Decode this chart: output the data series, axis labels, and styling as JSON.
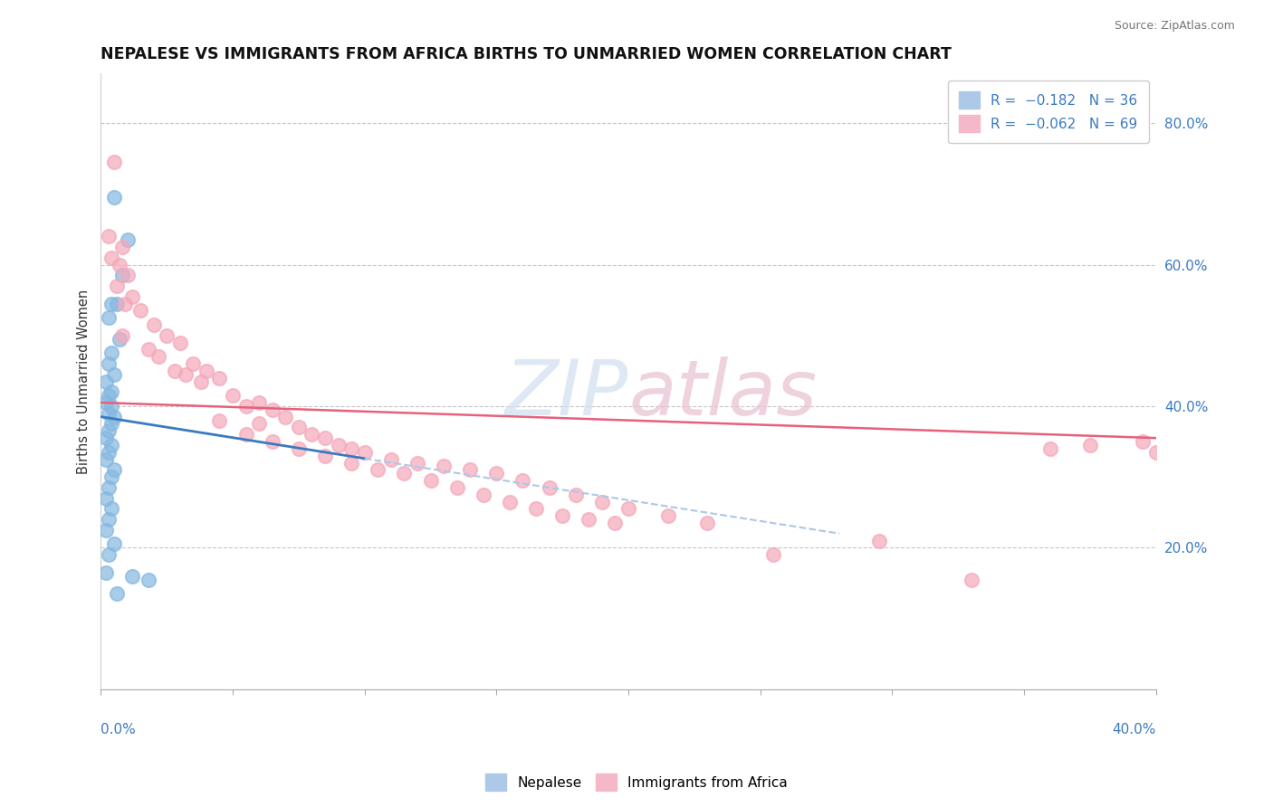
{
  "title": "NEPALESE VS IMMIGRANTS FROM AFRICA BIRTHS TO UNMARRIED WOMEN CORRELATION CHART",
  "source": "Source: ZipAtlas.com",
  "ylabel": "Births to Unmarried Women",
  "right_yticks": [
    "80.0%",
    "60.0%",
    "40.0%",
    "20.0%"
  ],
  "right_ytick_vals": [
    0.8,
    0.6,
    0.4,
    0.2
  ],
  "nepalese_color": "#85b8e0",
  "africa_color": "#f4a8ba",
  "nepalese_trend_color": "#3a7abf",
  "africa_trend_color": "#e8607a",
  "background_color": "#ffffff",
  "grid_color": "#c8c8c8",
  "xlim": [
    0.0,
    0.4
  ],
  "ylim": [
    0.0,
    0.87
  ],
  "nepalese_x": [
    0.005,
    0.01,
    0.008,
    0.004,
    0.006,
    0.003,
    0.007,
    0.004,
    0.003,
    0.005,
    0.002,
    0.004,
    0.003,
    0.002,
    0.004,
    0.003,
    0.005,
    0.004,
    0.003,
    0.002,
    0.004,
    0.003,
    0.002,
    0.005,
    0.004,
    0.003,
    0.002,
    0.004,
    0.003,
    0.002,
    0.005,
    0.003,
    0.002,
    0.006,
    0.012,
    0.018
  ],
  "nepalese_y": [
    0.695,
    0.635,
    0.585,
    0.545,
    0.545,
    0.525,
    0.495,
    0.475,
    0.46,
    0.445,
    0.435,
    0.42,
    0.415,
    0.405,
    0.4,
    0.39,
    0.385,
    0.375,
    0.365,
    0.355,
    0.345,
    0.335,
    0.325,
    0.31,
    0.3,
    0.285,
    0.27,
    0.255,
    0.24,
    0.225,
    0.205,
    0.19,
    0.165,
    0.135,
    0.16,
    0.155
  ],
  "africa_x": [
    0.005,
    0.003,
    0.008,
    0.004,
    0.007,
    0.01,
    0.006,
    0.012,
    0.009,
    0.015,
    0.02,
    0.008,
    0.025,
    0.03,
    0.018,
    0.022,
    0.035,
    0.028,
    0.04,
    0.032,
    0.045,
    0.038,
    0.05,
    0.06,
    0.055,
    0.065,
    0.07,
    0.06,
    0.075,
    0.08,
    0.085,
    0.09,
    0.095,
    0.1,
    0.11,
    0.12,
    0.13,
    0.14,
    0.15,
    0.16,
    0.17,
    0.18,
    0.19,
    0.2,
    0.215,
    0.23,
    0.045,
    0.055,
    0.065,
    0.075,
    0.085,
    0.095,
    0.105,
    0.115,
    0.125,
    0.135,
    0.145,
    0.155,
    0.165,
    0.175,
    0.185,
    0.195,
    0.255,
    0.295,
    0.33,
    0.36,
    0.375,
    0.395,
    0.4
  ],
  "africa_y": [
    0.745,
    0.64,
    0.625,
    0.61,
    0.6,
    0.585,
    0.57,
    0.555,
    0.545,
    0.535,
    0.515,
    0.5,
    0.5,
    0.49,
    0.48,
    0.47,
    0.46,
    0.45,
    0.45,
    0.445,
    0.44,
    0.435,
    0.415,
    0.405,
    0.4,
    0.395,
    0.385,
    0.375,
    0.37,
    0.36,
    0.355,
    0.345,
    0.34,
    0.335,
    0.325,
    0.32,
    0.315,
    0.31,
    0.305,
    0.295,
    0.285,
    0.275,
    0.265,
    0.255,
    0.245,
    0.235,
    0.38,
    0.36,
    0.35,
    0.34,
    0.33,
    0.32,
    0.31,
    0.305,
    0.295,
    0.285,
    0.275,
    0.265,
    0.255,
    0.245,
    0.24,
    0.235,
    0.19,
    0.21,
    0.155,
    0.34,
    0.345,
    0.35,
    0.335
  ],
  "nep_trend_x0": 0.0,
  "nep_trend_x1": 0.28,
  "nep_trend_y0": 0.385,
  "nep_trend_y1": 0.22,
  "afr_trend_x0": 0.0,
  "afr_trend_x1": 0.4,
  "afr_trend_y0": 0.405,
  "afr_trend_y1": 0.355
}
